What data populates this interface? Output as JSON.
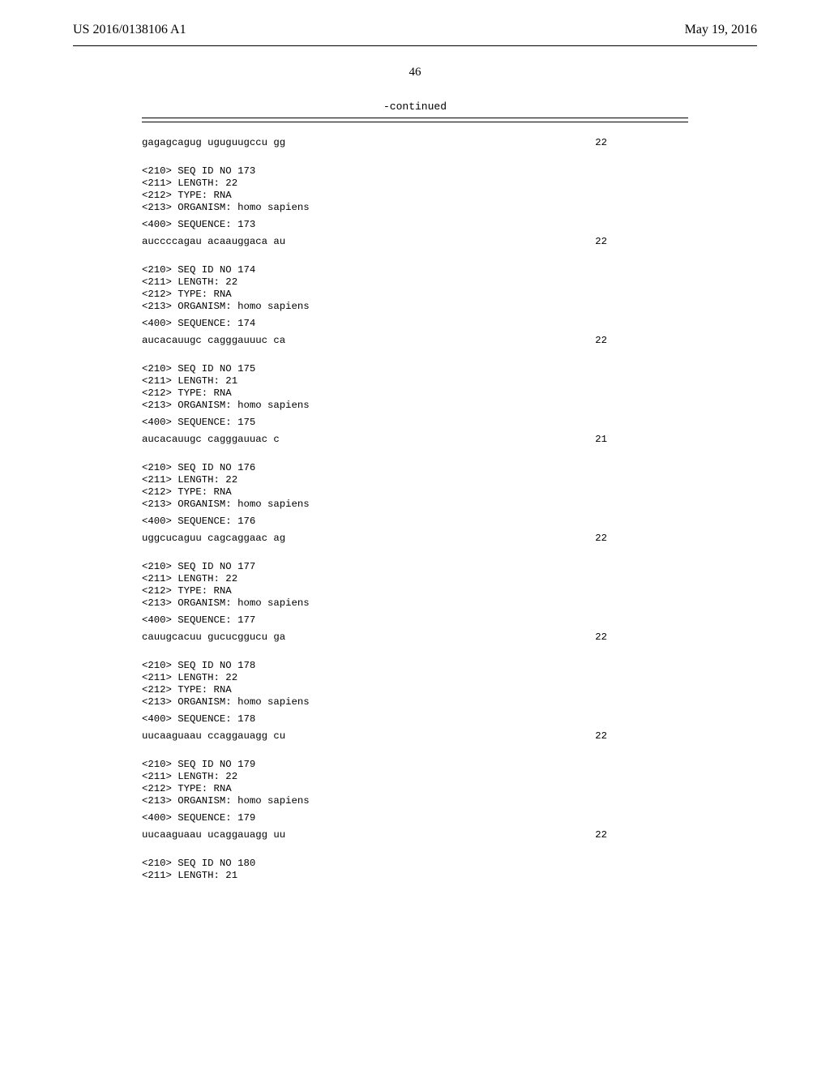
{
  "header": {
    "pub_number": "US 2016/0138106 A1",
    "pub_date": "May 19, 2016"
  },
  "page_number": "46",
  "continued_label": "-continued",
  "blocks": [
    {
      "seq_line": {
        "left": "gagagcagug uguguugccu gg",
        "right": "22"
      }
    },
    {
      "meta": [
        "<210> SEQ ID NO 173",
        "<211> LENGTH: 22",
        "<212> TYPE: RNA",
        "<213> ORGANISM: homo sapiens"
      ],
      "seq_label": "<400> SEQUENCE: 173",
      "seq_line": {
        "left": "auccccagau acaauggaca au",
        "right": "22"
      }
    },
    {
      "meta": [
        "<210> SEQ ID NO 174",
        "<211> LENGTH: 22",
        "<212> TYPE: RNA",
        "<213> ORGANISM: homo sapiens"
      ],
      "seq_label": "<400> SEQUENCE: 174",
      "seq_line": {
        "left": "aucacauugc cagggauuuc ca",
        "right": "22"
      }
    },
    {
      "meta": [
        "<210> SEQ ID NO 175",
        "<211> LENGTH: 21",
        "<212> TYPE: RNA",
        "<213> ORGANISM: homo sapiens"
      ],
      "seq_label": "<400> SEQUENCE: 175",
      "seq_line": {
        "left": "aucacauugc cagggauuac c",
        "right": "21"
      }
    },
    {
      "meta": [
        "<210> SEQ ID NO 176",
        "<211> LENGTH: 22",
        "<212> TYPE: RNA",
        "<213> ORGANISM: homo sapiens"
      ],
      "seq_label": "<400> SEQUENCE: 176",
      "seq_line": {
        "left": "uggcucaguu cagcaggaac ag",
        "right": "22"
      }
    },
    {
      "meta": [
        "<210> SEQ ID NO 177",
        "<211> LENGTH: 22",
        "<212> TYPE: RNA",
        "<213> ORGANISM: homo sapiens"
      ],
      "seq_label": "<400> SEQUENCE: 177",
      "seq_line": {
        "left": "cauugcacuu gucucggucu ga",
        "right": "22"
      }
    },
    {
      "meta": [
        "<210> SEQ ID NO 178",
        "<211> LENGTH: 22",
        "<212> TYPE: RNA",
        "<213> ORGANISM: homo sapiens"
      ],
      "seq_label": "<400> SEQUENCE: 178",
      "seq_line": {
        "left": "uucaaguaau ccaggauagg cu",
        "right": "22"
      }
    },
    {
      "meta": [
        "<210> SEQ ID NO 179",
        "<211> LENGTH: 22",
        "<212> TYPE: RNA",
        "<213> ORGANISM: homo sapiens"
      ],
      "seq_label": "<400> SEQUENCE: 179",
      "seq_line": {
        "left": "uucaaguaau ucaggauagg uu",
        "right": "22"
      }
    },
    {
      "meta": [
        "<210> SEQ ID NO 180",
        "<211> LENGTH: 21"
      ]
    }
  ]
}
